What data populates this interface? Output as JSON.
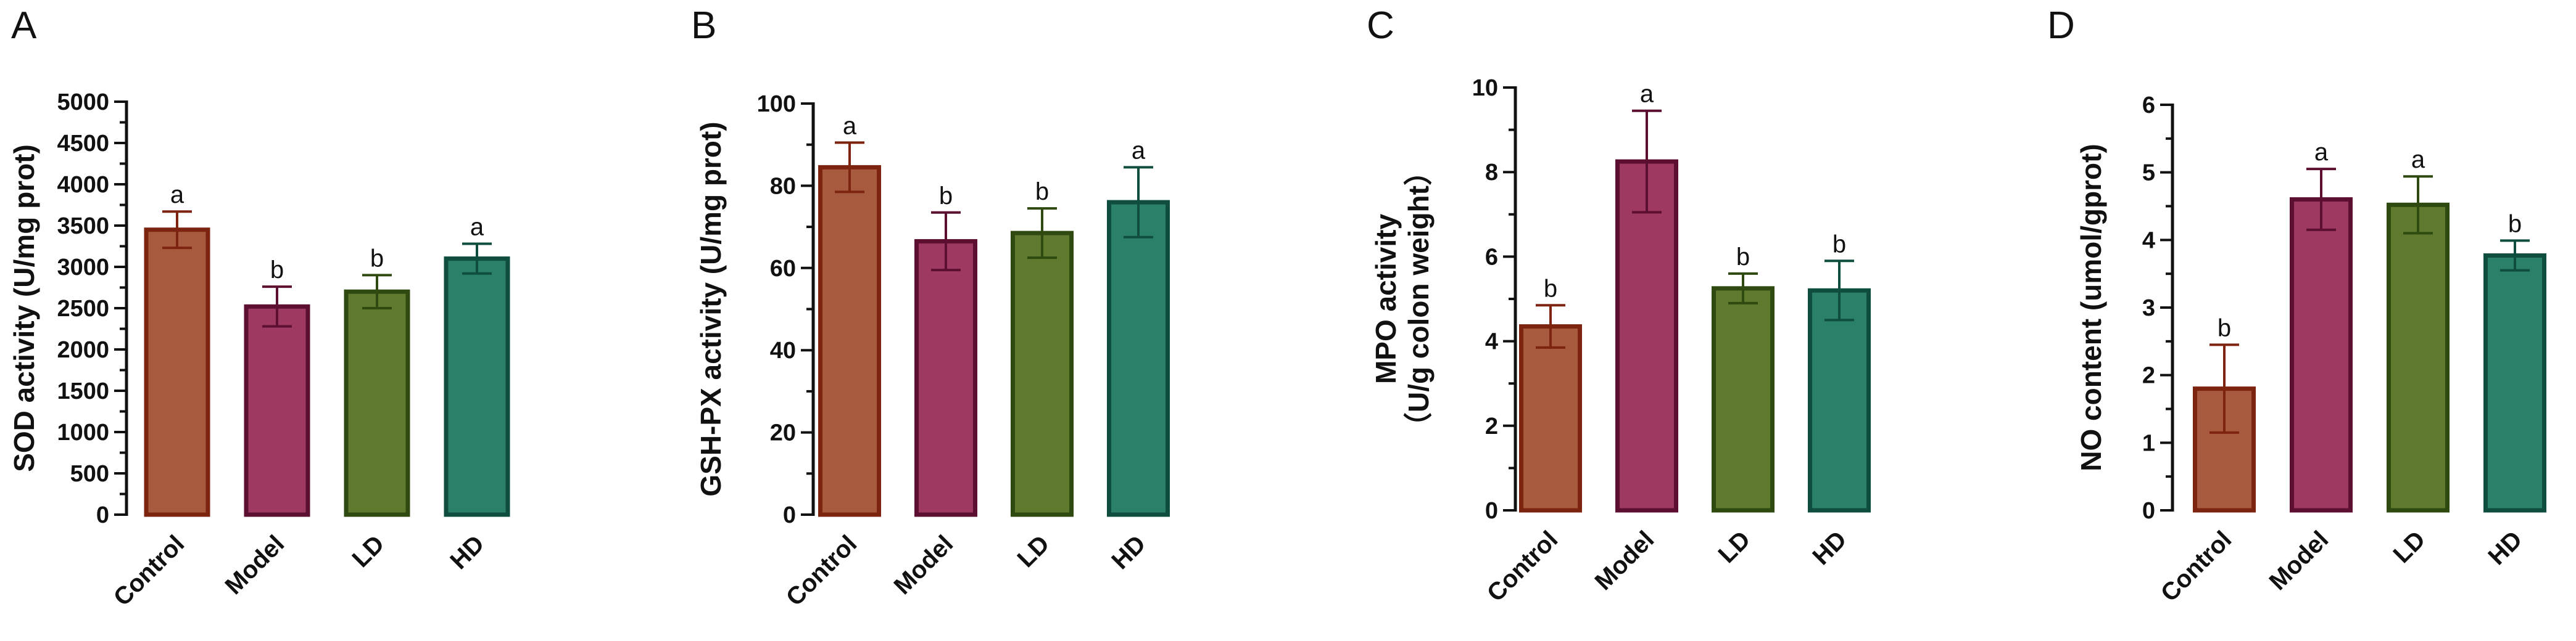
{
  "chart_data": [
    {
      "type": "bar",
      "panel": "A",
      "ylabel_lines": [
        "SOD activity (U/mg prot)"
      ],
      "categories": [
        "Control",
        "Model",
        "LD",
        "HD"
      ],
      "values": [
        3450,
        2520,
        2700,
        3100
      ],
      "errors": [
        220,
        240,
        200,
        180
      ],
      "significance": [
        "a",
        "b",
        "b",
        "a"
      ],
      "ylim": [
        0,
        5000
      ],
      "yticks": [
        0,
        500,
        1000,
        1500,
        2000,
        2500,
        3000,
        3500,
        4000,
        4500,
        5000
      ],
      "ytick_labels": [
        "0",
        "500",
        "1000",
        "1500",
        "2000",
        "2500",
        "3000",
        "3500",
        "4000",
        "4500",
        "5000"
      ]
    },
    {
      "type": "bar",
      "panel": "B",
      "ylabel_lines": [
        "GSH-PX activity (U/mg prot)"
      ],
      "categories": [
        "Control",
        "Model",
        "LD",
        "HD"
      ],
      "values": [
        84.5,
        66.5,
        68.5,
        76
      ],
      "errors": [
        6,
        7,
        6,
        8.5
      ],
      "significance": [
        "a",
        "b",
        "b",
        "a"
      ],
      "ylim": [
        0,
        100
      ],
      "yticks": [
        0,
        20,
        40,
        60,
        80,
        100
      ],
      "ytick_labels": [
        "0",
        "20",
        "40",
        "60",
        "80",
        "100"
      ]
    },
    {
      "type": "bar",
      "panel": "C",
      "ylabel_lines": [
        "MPO activity",
        "（U/g colon weight）"
      ],
      "categories": [
        "Control",
        "Model",
        "LD",
        "HD"
      ],
      "values": [
        4.35,
        8.25,
        5.25,
        5.2
      ],
      "errors": [
        0.5,
        1.2,
        0.35,
        0.7
      ],
      "significance": [
        "b",
        "a",
        "b",
        "b"
      ],
      "ylim": [
        0,
        10
      ],
      "yticks": [
        0,
        2,
        4,
        6,
        8,
        10
      ],
      "ytick_labels": [
        "0",
        "2",
        "4",
        "6",
        "8",
        "10"
      ]
    },
    {
      "type": "bar",
      "panel": "D",
      "ylabel_lines": [
        "NO content (umol/gprot)"
      ],
      "categories": [
        "Control",
        "Model",
        "LD",
        "HD"
      ],
      "values": [
        1.8,
        4.6,
        4.52,
        3.77
      ],
      "errors": [
        0.65,
        0.45,
        0.42,
        0.22
      ],
      "significance": [
        "b",
        "a",
        "a",
        "b"
      ],
      "ylim": [
        0,
        6
      ],
      "yticks": [
        0,
        1,
        2,
        3,
        4,
        5,
        6
      ],
      "ytick_labels": [
        "0",
        "1",
        "2",
        "3",
        "4",
        "5",
        "6"
      ]
    }
  ],
  "colors": {
    "Control": {
      "fill": "#a85a3e",
      "stroke": "#7d2410"
    },
    "Model": {
      "fill": "#9e3a62",
      "stroke": "#5c0f31"
    },
    "LD": {
      "fill": "#5f7a2e",
      "stroke": "#2f4a10"
    },
    "HD": {
      "fill": "#2b8069",
      "stroke": "#0f4d3e"
    }
  }
}
